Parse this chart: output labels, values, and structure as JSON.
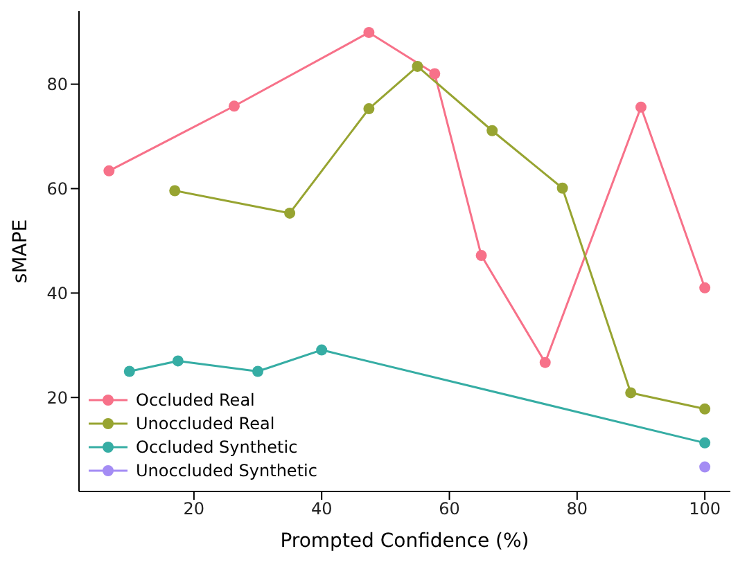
{
  "chart_data": {
    "type": "line",
    "xlabel": "Prompted Confidence (%)",
    "ylabel": "sMAPE",
    "xlim": [
      2,
      104
    ],
    "ylim": [
      2,
      94
    ],
    "xticks": [
      20,
      40,
      60,
      80,
      100
    ],
    "yticks": [
      20,
      40,
      60,
      80
    ],
    "grid": false,
    "legend": "bottom left",
    "marker": "circle",
    "line_style": "solid",
    "series": [
      {
        "name": "Occluded Real",
        "color": "#f77189",
        "x": [
          6.7,
          26.3,
          47.4,
          57.7,
          65,
          75,
          90,
          100
        ],
        "values": [
          63.4,
          75.8,
          89.9,
          82,
          47.2,
          26.7,
          75.6,
          41
        ]
      },
      {
        "name": "Unoccluded Real",
        "color": "#97a431",
        "x": [
          17,
          35,
          47.4,
          55,
          66.7,
          77.7,
          88.4,
          100
        ],
        "values": [
          59.6,
          55.3,
          75.3,
          83.4,
          71.1,
          60.1,
          20.9,
          17.8
        ]
      },
      {
        "name": "Occluded Synthetic",
        "color": "#36ada4",
        "x": [
          9.9,
          17.5,
          30,
          40,
          100
        ],
        "values": [
          25,
          27,
          25,
          29.1,
          11.3
        ]
      },
      {
        "name": "Unoccluded Synthetic",
        "color": "#a48cf4",
        "x": [
          100
        ],
        "values": [
          6.7
        ]
      }
    ]
  }
}
